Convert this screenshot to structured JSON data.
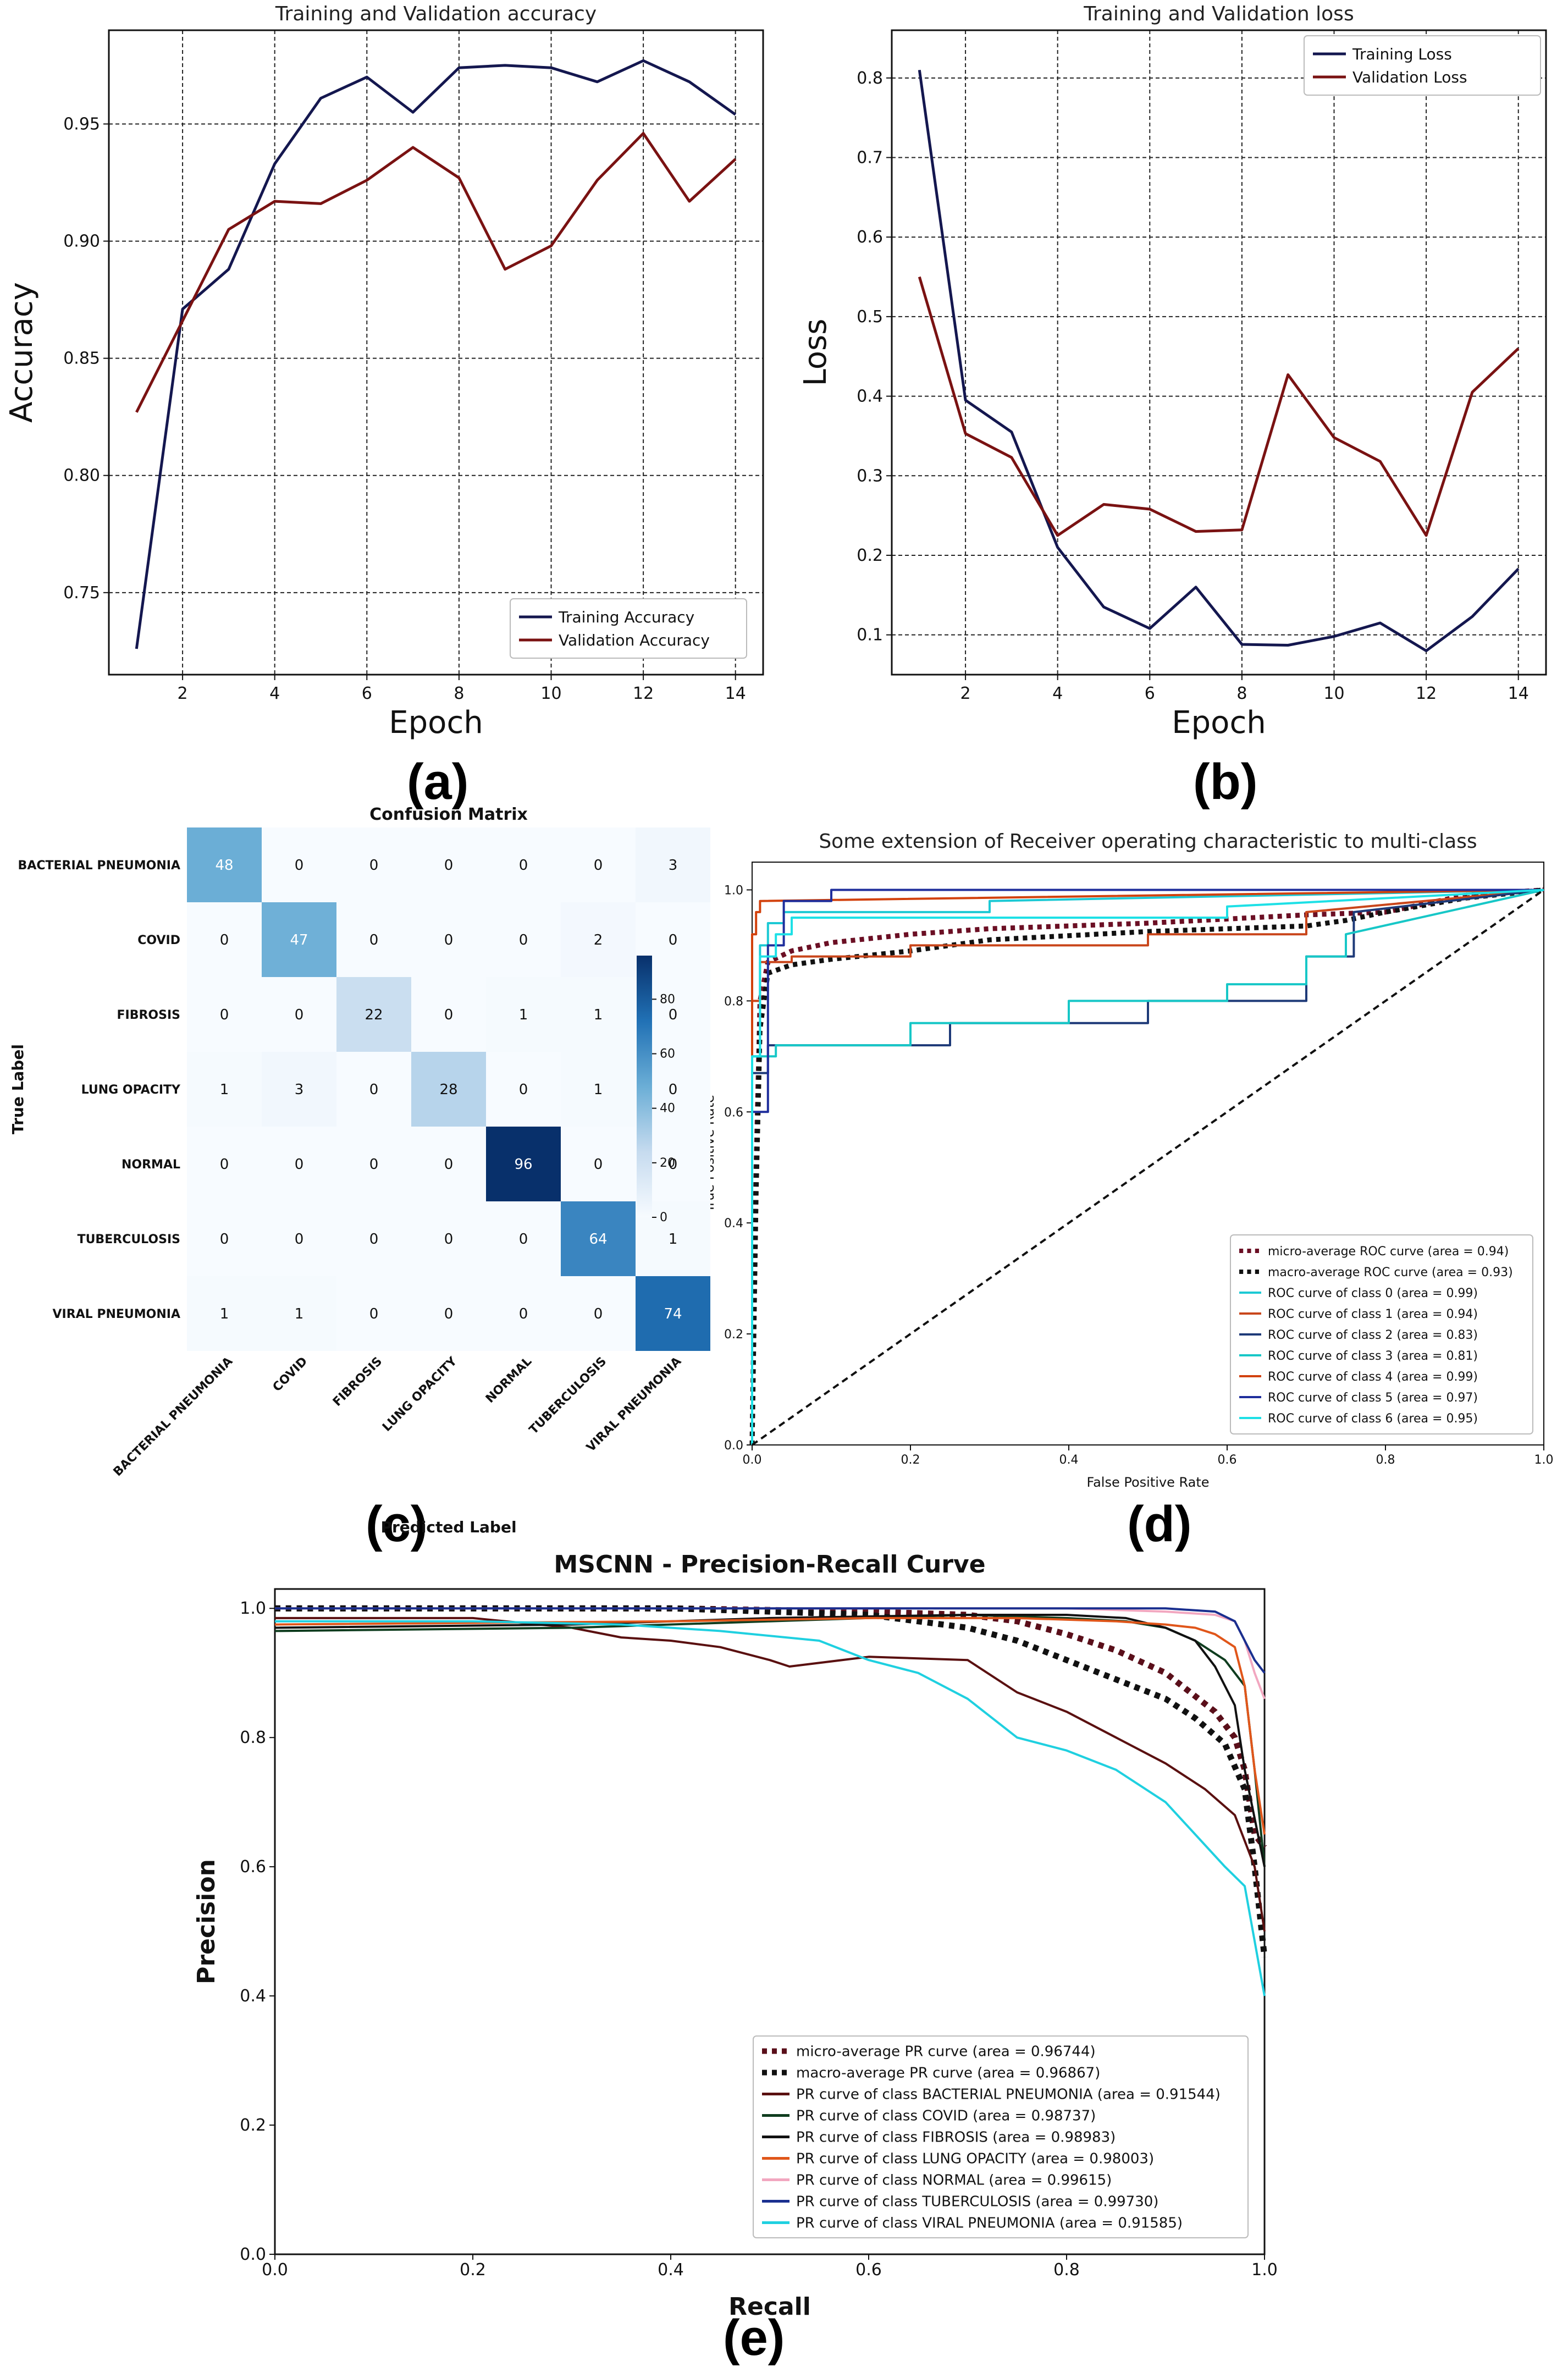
{
  "panels": {
    "a": "(a)",
    "b": "(b)",
    "c": "(c)",
    "d": "(d)",
    "e": "(e)"
  },
  "chart_data": [
    {
      "id": "a",
      "type": "line",
      "title": "Training and Validation accuracy",
      "xlabel": "Epoch",
      "ylabel": "Accuracy",
      "xlim": [
        0.4,
        14.6
      ],
      "ylim": [
        0.715,
        0.99
      ],
      "xticks": [
        2,
        4,
        6,
        8,
        10,
        12,
        14
      ],
      "yticks": [
        0.75,
        0.8,
        0.85,
        0.9,
        0.95
      ],
      "ytick_labels": [
        "0.75",
        "0.80",
        "0.85",
        "0.90",
        "0.95"
      ],
      "grid": true,
      "legend_position": "lower right",
      "x": [
        1,
        2,
        3,
        4,
        5,
        6,
        7,
        8,
        9,
        10,
        11,
        12,
        13,
        14
      ],
      "series": [
        {
          "name": "Training Accuracy",
          "color": "#14174f",
          "values": [
            0.726,
            0.871,
            0.888,
            0.933,
            0.961,
            0.97,
            0.955,
            0.974,
            0.975,
            0.974,
            0.968,
            0.977,
            0.968,
            0.954
          ]
        },
        {
          "name": "Validation Accuracy",
          "color": "#7a1212",
          "values": [
            0.827,
            0.866,
            0.905,
            0.917,
            0.916,
            0.926,
            0.94,
            0.927,
            0.888,
            0.898,
            0.926,
            0.946,
            0.917,
            0.935
          ]
        }
      ]
    },
    {
      "id": "b",
      "type": "line",
      "title": "Training and Validation loss",
      "xlabel": "Epoch",
      "ylabel": "Loss",
      "xlim": [
        0.4,
        14.6
      ],
      "ylim": [
        0.05,
        0.86
      ],
      "xticks": [
        2,
        4,
        6,
        8,
        10,
        12,
        14
      ],
      "yticks": [
        0.1,
        0.2,
        0.3,
        0.4,
        0.5,
        0.6,
        0.7,
        0.8
      ],
      "ytick_labels": [
        "0.1",
        "0.2",
        "0.3",
        "0.4",
        "0.5",
        "0.6",
        "0.7",
        "0.8"
      ],
      "grid": true,
      "legend_position": "upper right",
      "x": [
        1,
        2,
        3,
        4,
        5,
        6,
        7,
        8,
        9,
        10,
        11,
        12,
        13,
        14
      ],
      "series": [
        {
          "name": "Training Loss",
          "color": "#14174f",
          "values": [
            0.81,
            0.395,
            0.355,
            0.21,
            0.135,
            0.108,
            0.16,
            0.088,
            0.087,
            0.098,
            0.115,
            0.08,
            0.123,
            0.183
          ]
        },
        {
          "name": "Validation Loss",
          "color": "#7a1212",
          "values": [
            0.55,
            0.353,
            0.323,
            0.225,
            0.264,
            0.258,
            0.23,
            0.232,
            0.427,
            0.348,
            0.318,
            0.225,
            0.405,
            0.46
          ]
        }
      ]
    },
    {
      "id": "c",
      "type": "heatmap",
      "title": "Confusion Matrix",
      "xlabel": "Predicted Label",
      "ylabel": "True Label",
      "labels": [
        "BACTERIAL PNEUMONIA",
        "COVID",
        "FIBROSIS",
        "LUNG OPACITY",
        "NORMAL",
        "TUBERCULOSIS",
        "VIRAL PNEUMONIA"
      ],
      "matrix": [
        [
          48,
          0,
          0,
          0,
          0,
          0,
          3
        ],
        [
          0,
          47,
          0,
          0,
          0,
          2,
          0
        ],
        [
          0,
          0,
          22,
          0,
          1,
          1,
          0
        ],
        [
          1,
          3,
          0,
          28,
          0,
          1,
          0
        ],
        [
          0,
          0,
          0,
          0,
          96,
          0,
          0
        ],
        [
          0,
          0,
          0,
          0,
          0,
          64,
          1
        ],
        [
          1,
          1,
          0,
          0,
          0,
          0,
          74
        ]
      ],
      "colorbar_ticks": [
        0,
        20,
        40,
        60,
        80
      ],
      "colorbar_labels": [
        "0",
        "20",
        "40",
        "60",
        "80"
      ],
      "vmax": 96
    },
    {
      "id": "d",
      "type": "line",
      "title": "Some extension of Receiver operating characteristic to multi-class",
      "xlabel": "False Positive Rate",
      "ylabel": "True Positive Rate",
      "xlim": [
        0.0,
        1.0
      ],
      "ylim": [
        0.0,
        1.05
      ],
      "xticks": [
        0.0,
        0.2,
        0.4,
        0.6,
        0.8,
        1.0
      ],
      "xtick_labels": [
        "0.0",
        "0.2",
        "0.4",
        "0.6",
        "0.8",
        "1.0"
      ],
      "yticks": [
        0.0,
        0.2,
        0.4,
        0.6,
        0.8,
        1.0
      ],
      "ytick_labels": [
        "0.0",
        "0.2",
        "0.4",
        "0.6",
        "0.8",
        "1.0"
      ],
      "grid": false,
      "legend_position": "lower right",
      "series": [
        {
          "name": "micro-average ROC curve (area = 0.94)",
          "color": "#6b0f24",
          "style": "dotted",
          "x": [
            0,
            0.005,
            0.01,
            0.02,
            0.05,
            0.1,
            0.2,
            0.3,
            0.5,
            0.7,
            0.8,
            0.9,
            1.0
          ],
          "y": [
            0,
            0.5,
            0.8,
            0.87,
            0.89,
            0.905,
            0.92,
            0.93,
            0.94,
            0.955,
            0.96,
            0.99,
            1.0
          ]
        },
        {
          "name": "macro-average ROC curve (area = 0.93)",
          "color": "#111111",
          "style": "dotted",
          "x": [
            0,
            0.005,
            0.01,
            0.02,
            0.05,
            0.1,
            0.2,
            0.3,
            0.5,
            0.7,
            0.75,
            0.8,
            0.9,
            1.0
          ],
          "y": [
            0,
            0.45,
            0.75,
            0.85,
            0.865,
            0.875,
            0.89,
            0.91,
            0.925,
            0.935,
            0.945,
            0.96,
            0.985,
            1.0
          ]
        },
        {
          "name": "ROC curve of class 0 (area = 0.99)",
          "color": "#1cc9d4",
          "style": "solid",
          "x": [
            0,
            0,
            0.01,
            0.01,
            0.02,
            0.02,
            0.04,
            0.04,
            0.3,
            0.3,
            1.0
          ],
          "y": [
            0,
            0.7,
            0.7,
            0.9,
            0.9,
            0.94,
            0.94,
            0.96,
            0.96,
            0.98,
            1.0
          ]
        },
        {
          "name": "ROC curve of class 1 (area = 0.94)",
          "color": "#c9461b",
          "style": "solid",
          "x": [
            0,
            0,
            0.01,
            0.01,
            0.05,
            0.05,
            0.2,
            0.2,
            0.5,
            0.5,
            0.7,
            0.7,
            1.0
          ],
          "y": [
            0,
            0.8,
            0.8,
            0.87,
            0.87,
            0.88,
            0.88,
            0.9,
            0.9,
            0.92,
            0.92,
            0.96,
            1.0
          ]
        },
        {
          "name": "ROC curve of class 2 (area = 0.83)",
          "color": "#1e3a78",
          "style": "solid",
          "x": [
            0,
            0,
            0.02,
            0.02,
            0.25,
            0.25,
            0.5,
            0.5,
            0.7,
            0.7,
            0.76,
            0.76,
            1.0
          ],
          "y": [
            0,
            0.67,
            0.67,
            0.72,
            0.72,
            0.76,
            0.76,
            0.8,
            0.8,
            0.88,
            0.88,
            0.96,
            1.0
          ]
        },
        {
          "name": "ROC curve of class 3 (area = 0.81)",
          "color": "#17c7c7",
          "style": "solid",
          "x": [
            0,
            0,
            0.03,
            0.03,
            0.2,
            0.2,
            0.4,
            0.4,
            0.6,
            0.6,
            0.7,
            0.7,
            0.75,
            0.75,
            1.0
          ],
          "y": [
            0,
            0.7,
            0.7,
            0.72,
            0.72,
            0.76,
            0.76,
            0.8,
            0.8,
            0.83,
            0.83,
            0.88,
            0.88,
            0.92,
            1.0
          ]
        },
        {
          "name": "ROC curve of class 4 (area = 0.99)",
          "color": "#d2410d",
          "style": "solid",
          "x": [
            0,
            0,
            0.005,
            0.005,
            0.01,
            0.01,
            1.0
          ],
          "y": [
            0,
            0.92,
            0.92,
            0.96,
            0.96,
            0.98,
            1.0
          ]
        },
        {
          "name": "ROC curve of class 5 (area = 0.97)",
          "color": "#1f2e9c",
          "style": "solid",
          "x": [
            0,
            0,
            0.02,
            0.02,
            0.04,
            0.04,
            0.1,
            0.1,
            1.0
          ],
          "y": [
            0,
            0.6,
            0.6,
            0.9,
            0.9,
            0.98,
            0.98,
            1.0,
            1.0
          ]
        },
        {
          "name": "ROC curve of class 6 (area = 0.95)",
          "color": "#1de0e6",
          "style": "solid",
          "x": [
            0,
            0,
            0.01,
            0.01,
            0.03,
            0.03,
            0.05,
            0.05,
            0.6,
            0.6,
            1.0
          ],
          "y": [
            0,
            0.7,
            0.7,
            0.88,
            0.88,
            0.92,
            0.92,
            0.95,
            0.95,
            0.97,
            1.0
          ]
        },
        {
          "name": "chance",
          "color": "#111111",
          "style": "dashed",
          "x": [
            0,
            1
          ],
          "y": [
            0,
            1
          ]
        }
      ]
    },
    {
      "id": "e",
      "type": "line",
      "title": "MSCNN - Precision-Recall Curve",
      "xlabel": "Recall",
      "ylabel": "Precision",
      "xlim": [
        0.0,
        1.0
      ],
      "ylim": [
        0.0,
        1.03
      ],
      "xticks": [
        0.0,
        0.2,
        0.4,
        0.6,
        0.8,
        1.0
      ],
      "xtick_labels": [
        "0.0",
        "0.2",
        "0.4",
        "0.6",
        "0.8",
        "1.0"
      ],
      "yticks": [
        0.0,
        0.2,
        0.4,
        0.6,
        0.8,
        1.0
      ],
      "ytick_labels": [
        "0.0",
        "0.2",
        "0.4",
        "0.6",
        "0.8",
        "1.0"
      ],
      "grid": false,
      "legend_position": "lower right",
      "series": [
        {
          "name": "micro-average PR curve (area = 0.96744)",
          "color": "#5a0f1a",
          "style": "dotted",
          "x": [
            0,
            0.2,
            0.4,
            0.6,
            0.7,
            0.75,
            0.8,
            0.85,
            0.9,
            0.95,
            0.97,
            0.98,
            0.99,
            1.0
          ],
          "y": [
            1.0,
            1.0,
            1.0,
            0.995,
            0.99,
            0.98,
            0.96,
            0.935,
            0.9,
            0.84,
            0.8,
            0.75,
            0.65,
            0.63
          ]
        },
        {
          "name": "macro-average PR curve (area = 0.96867)",
          "color": "#111111",
          "style": "dotted",
          "x": [
            0,
            0.2,
            0.4,
            0.6,
            0.7,
            0.75,
            0.8,
            0.85,
            0.9,
            0.93,
            0.96,
            0.98,
            0.99,
            1.0
          ],
          "y": [
            1.0,
            1.0,
            1.0,
            0.99,
            0.97,
            0.95,
            0.92,
            0.89,
            0.86,
            0.83,
            0.79,
            0.72,
            0.6,
            0.46
          ]
        },
        {
          "name": "PR curve of class BACTERIAL PNEUMONIA (area = 0.91544)",
          "color": "#5a1010",
          "style": "solid",
          "x": [
            0,
            0.2,
            0.3,
            0.35,
            0.4,
            0.45,
            0.5,
            0.52,
            0.6,
            0.7,
            0.75,
            0.8,
            0.85,
            0.9,
            0.94,
            0.97,
            0.99,
            1.0
          ],
          "y": [
            0.985,
            0.985,
            0.97,
            0.955,
            0.95,
            0.94,
            0.92,
            0.91,
            0.925,
            0.92,
            0.87,
            0.84,
            0.8,
            0.76,
            0.72,
            0.68,
            0.6,
            0.5
          ]
        },
        {
          "name": "PR curve of class COVID (area = 0.98737)",
          "color": "#0f3d1f",
          "style": "solid",
          "x": [
            0,
            0.3,
            0.5,
            0.7,
            0.8,
            0.86,
            0.9,
            0.93,
            0.96,
            0.98,
            0.99,
            1.0
          ],
          "y": [
            0.965,
            0.97,
            0.98,
            0.99,
            0.985,
            0.98,
            0.97,
            0.95,
            0.92,
            0.88,
            0.75,
            0.6
          ]
        },
        {
          "name": "PR curve of class FIBROSIS (area = 0.98983)",
          "color": "#111111",
          "style": "solid",
          "x": [
            0,
            0.3,
            0.5,
            0.7,
            0.8,
            0.86,
            0.9,
            0.93,
            0.95,
            0.97,
            0.98,
            1.0
          ],
          "y": [
            0.97,
            0.975,
            0.985,
            0.99,
            0.99,
            0.985,
            0.97,
            0.95,
            0.91,
            0.85,
            0.75,
            0.6
          ]
        },
        {
          "name": "PR curve of class LUNG OPACITY (area = 0.98003)",
          "color": "#e0561a",
          "style": "solid",
          "x": [
            0,
            0.4,
            0.6,
            0.75,
            0.85,
            0.9,
            0.93,
            0.95,
            0.97,
            0.98,
            0.99,
            1.0
          ],
          "y": [
            0.975,
            0.98,
            0.985,
            0.985,
            0.98,
            0.975,
            0.97,
            0.96,
            0.94,
            0.88,
            0.75,
            0.65
          ]
        },
        {
          "name": "PR curve of class NORMAL (area = 0.99615)",
          "color": "#f2a7c0",
          "style": "solid",
          "x": [
            0,
            0.5,
            0.8,
            0.9,
            0.95,
            0.97,
            0.98,
            0.99,
            1.0
          ],
          "y": [
            1.0,
            1.0,
            1.0,
            0.995,
            0.99,
            0.98,
            0.95,
            0.9,
            0.86
          ]
        },
        {
          "name": "PR curve of class TUBERCULOSIS (area = 0.99730)",
          "color": "#1a2f8f",
          "style": "solid",
          "x": [
            0,
            0.5,
            0.8,
            0.9,
            0.95,
            0.97,
            0.98,
            0.99,
            1.0
          ],
          "y": [
            1.0,
            1.0,
            1.0,
            1.0,
            0.995,
            0.98,
            0.95,
            0.92,
            0.9
          ]
        },
        {
          "name": "PR curve of class VIRAL PNEUMONIA (area = 0.91585)",
          "color": "#1fd0e0",
          "style": "solid",
          "x": [
            0,
            0.2,
            0.35,
            0.45,
            0.55,
            0.6,
            0.65,
            0.7,
            0.75,
            0.8,
            0.85,
            0.9,
            0.93,
            0.96,
            0.98,
            1.0
          ],
          "y": [
            0.98,
            0.98,
            0.975,
            0.965,
            0.95,
            0.92,
            0.9,
            0.86,
            0.8,
            0.78,
            0.75,
            0.7,
            0.65,
            0.6,
            0.57,
            0.4
          ]
        }
      ]
    }
  ]
}
